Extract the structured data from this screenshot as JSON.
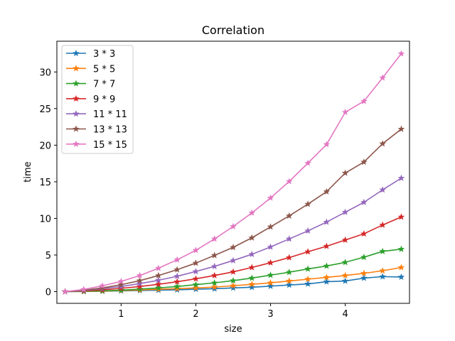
{
  "chart_data": {
    "type": "line",
    "title": "Correlation",
    "xlabel": "size",
    "ylabel": "time",
    "xlim": [
      0.14,
      4.86
    ],
    "ylim": [
      -1.6,
      34.2
    ],
    "xticks": [
      1,
      2,
      3,
      4
    ],
    "yticks": [
      0,
      5,
      10,
      15,
      20,
      25,
      30
    ],
    "grid": false,
    "legend_position": "top-left",
    "marker": "star",
    "x": [
      0.25,
      0.5,
      0.75,
      1.0,
      1.25,
      1.5,
      1.75,
      2.0,
      2.25,
      2.5,
      2.75,
      3.0,
      3.25,
      3.5,
      3.75,
      4.0,
      4.25,
      4.5,
      4.75
    ],
    "series": [
      {
        "name": "3 * 3",
        "color": "#1f77b4",
        "values": [
          0.0,
          0.02,
          0.05,
          0.1,
          0.15,
          0.2,
          0.25,
          0.33,
          0.4,
          0.5,
          0.6,
          0.75,
          0.9,
          1.05,
          1.35,
          1.45,
          1.85,
          2.05,
          2.0
        ]
      },
      {
        "name": "5 * 5",
        "color": "#ff7f0e",
        "values": [
          0.0,
          0.03,
          0.07,
          0.15,
          0.22,
          0.32,
          0.4,
          0.5,
          0.62,
          0.8,
          1.0,
          1.2,
          1.45,
          1.7,
          1.95,
          2.2,
          2.5,
          2.85,
          3.3
        ]
      },
      {
        "name": "7 * 7",
        "color": "#2ca02c",
        "values": [
          0.0,
          0.05,
          0.12,
          0.2,
          0.35,
          0.5,
          0.7,
          0.95,
          1.2,
          1.5,
          1.85,
          2.25,
          2.65,
          3.1,
          3.5,
          4.0,
          4.7,
          5.5,
          5.8
        ]
      },
      {
        "name": "9 * 9",
        "color": "#d62728",
        "values": [
          0.0,
          0.1,
          0.25,
          0.45,
          0.7,
          1.0,
          1.35,
          1.75,
          2.2,
          2.7,
          3.3,
          3.95,
          4.65,
          5.45,
          6.2,
          7.05,
          7.9,
          9.1,
          10.2
        ]
      },
      {
        "name": "11 * 11",
        "color": "#9467bd",
        "values": [
          0.0,
          0.15,
          0.4,
          0.7,
          1.1,
          1.55,
          2.1,
          2.75,
          3.45,
          4.25,
          5.1,
          6.1,
          7.2,
          8.3,
          9.5,
          10.85,
          12.2,
          13.9,
          15.5
        ]
      },
      {
        "name": "13 * 13",
        "color": "#8c564b",
        "values": [
          0.0,
          0.2,
          0.5,
          0.95,
          1.5,
          2.2,
          3.0,
          3.9,
          4.95,
          6.05,
          7.35,
          8.85,
          10.35,
          11.95,
          13.65,
          16.2,
          17.7,
          20.2,
          22.2
        ]
      },
      {
        "name": "15 * 15",
        "color": "#e377c2",
        "values": [
          0.0,
          0.3,
          0.8,
          1.4,
          2.2,
          3.2,
          4.35,
          5.65,
          7.2,
          8.9,
          10.75,
          12.8,
          15.05,
          17.55,
          20.1,
          24.5,
          26.0,
          29.2,
          32.5
        ]
      }
    ]
  }
}
